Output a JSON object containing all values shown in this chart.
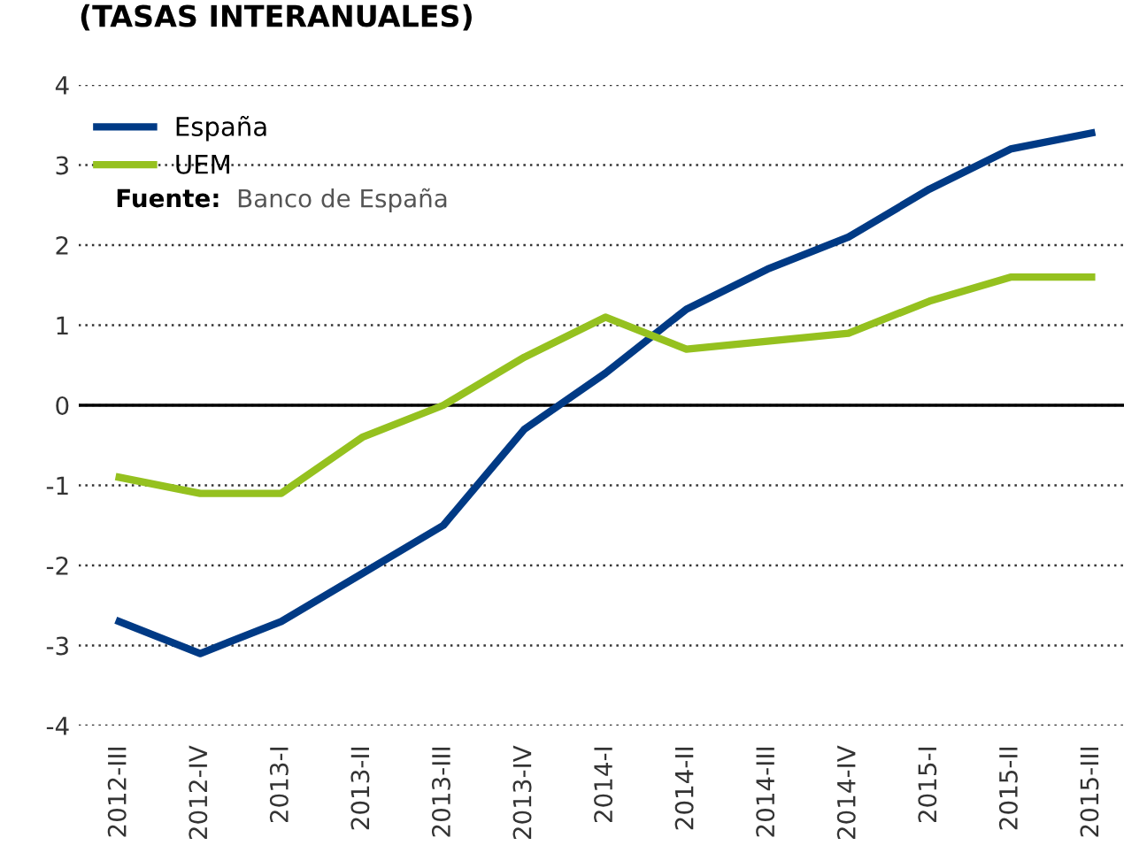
{
  "chart_data": {
    "type": "line",
    "title": "(TASAS INTERANUALES)",
    "categories": [
      "2012-III",
      "2012-IV",
      "2013-I",
      "2013-II",
      "2013-III",
      "2013-IV",
      "2014-I",
      "2014-II",
      "2014-III",
      "2014-IV",
      "2015-I",
      "2015-II",
      "2015-III"
    ],
    "series": [
      {
        "name": "España",
        "color": "#003a85",
        "values": [
          -2.7,
          -3.1,
          -2.7,
          -2.1,
          -1.5,
          -0.3,
          0.4,
          1.2,
          1.7,
          2.1,
          2.7,
          3.2,
          3.4
        ]
      },
      {
        "name": "UEM",
        "color": "#95c11f",
        "values": [
          -0.9,
          -1.1,
          -1.1,
          -0.4,
          0,
          0.6,
          1.1,
          0.7,
          0.8,
          0.9,
          1.3,
          1.6,
          1.6
        ]
      }
    ],
    "ylim": [
      -4,
      4
    ],
    "yticks": [
      -4,
      -3,
      -2,
      -1,
      0,
      1,
      2,
      3,
      4
    ],
    "grid": "y",
    "legend": "top left",
    "marker": "none",
    "line_style": "solid",
    "ref_lines": [
      {
        "axis": "y",
        "value": 0,
        "color": "#000000",
        "line_style": "solid"
      }
    ],
    "annotations": [
      "Fuente:  Banco de España"
    ]
  }
}
